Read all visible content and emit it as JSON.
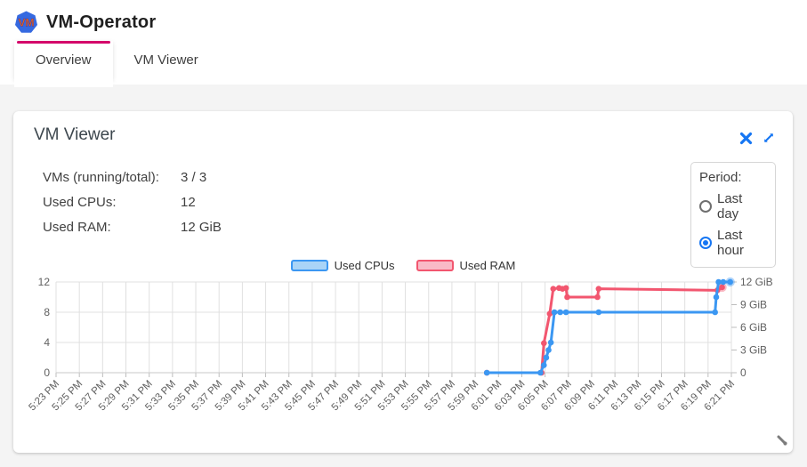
{
  "header": {
    "app_title": "VM-Operator",
    "tabs": [
      {
        "label": "Overview",
        "active": true
      },
      {
        "label": "VM Viewer",
        "active": false
      }
    ]
  },
  "card": {
    "title": "VM Viewer",
    "stats": [
      {
        "label": "VMs (running/total):",
        "value": "3 / 3"
      },
      {
        "label": "Used CPUs:",
        "value": "12"
      },
      {
        "label": "Used RAM:",
        "value": "12 GiB"
      }
    ],
    "period": {
      "label": "Period:",
      "options": [
        {
          "label": "Last day",
          "selected": false
        },
        {
          "label": "Last hour",
          "selected": true
        }
      ]
    }
  },
  "colors": {
    "accent_blue": "#1676f3",
    "tab_indicator": "#d4066a",
    "logo_blue": "#3569e0",
    "logo_orange": "#ed7112",
    "grid": "#e0e0e0",
    "axis_line": "#c9c9c9",
    "axis_text": "#5f5f5f"
  },
  "chart_data": {
    "type": "line",
    "title": "",
    "legend_position": "top-center",
    "grid": true,
    "x_start_label": "5:23 PM",
    "x_tick_labels": [
      "5:23 PM",
      "5:25 PM",
      "5:27 PM",
      "5:29 PM",
      "5:31 PM",
      "5:33 PM",
      "5:35 PM",
      "5:37 PM",
      "5:39 PM",
      "5:41 PM",
      "5:43 PM",
      "5:45 PM",
      "5:47 PM",
      "5:49 PM",
      "5:51 PM",
      "5:53 PM",
      "5:55 PM",
      "5:57 PM",
      "5:59 PM",
      "6:01 PM",
      "6:03 PM",
      "6:05 PM",
      "6:07 PM",
      "6:09 PM",
      "6:11 PM",
      "6:13 PM",
      "6:15 PM",
      "6:17 PM",
      "6:19 PM",
      "6:21 PM"
    ],
    "x_minutes_range": [
      0,
      58
    ],
    "left_axis": {
      "ticks": [
        0,
        4,
        8,
        12
      ],
      "range": [
        0,
        12
      ]
    },
    "right_axis": {
      "tick_labels": [
        "0",
        "3 GiB",
        "6 GiB",
        "9 GiB",
        "12 GiB"
      ],
      "tick_values": [
        0,
        3,
        6,
        9,
        12
      ],
      "range": [
        0,
        12
      ]
    },
    "series": [
      {
        "name": "Used CPUs",
        "axis": "left",
        "color": "#3b97f2",
        "fill": "#a9d4f7",
        "points_minutes_value": [
          [
            37,
            0
          ],
          [
            41.6,
            0
          ],
          [
            41.9,
            1
          ],
          [
            42.1,
            2
          ],
          [
            42.3,
            3
          ],
          [
            42.5,
            4
          ],
          [
            42.8,
            8
          ],
          [
            43.3,
            8
          ],
          [
            43.8,
            8
          ],
          [
            46.6,
            8
          ],
          [
            56.6,
            8
          ],
          [
            56.7,
            10
          ],
          [
            56.9,
            12
          ],
          [
            57.3,
            12
          ],
          [
            57.9,
            12
          ]
        ]
      },
      {
        "name": "Used RAM",
        "axis": "right",
        "color": "#f2566f",
        "fill": "#f9bac7",
        "points_minutes_value": [
          [
            37,
            0
          ],
          [
            41.7,
            0
          ],
          [
            41.9,
            3.9
          ],
          [
            42.4,
            7.8
          ],
          [
            42.7,
            11.1
          ],
          [
            43.2,
            11.2
          ],
          [
            43.5,
            11.1
          ],
          [
            43.8,
            11.2
          ],
          [
            43.9,
            10
          ],
          [
            46.5,
            10
          ],
          [
            46.6,
            11.1
          ],
          [
            56.8,
            10.9
          ],
          [
            57.2,
            11.3
          ]
        ]
      }
    ]
  }
}
